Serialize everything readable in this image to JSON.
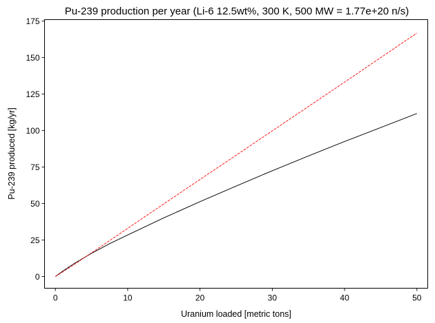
{
  "chart_data": {
    "type": "line",
    "title": "Pu-239 production per year (Li-6 12.5wt%, 300 K, 500 MW = 1.77e+20 n/s)",
    "xlabel": "Uranium loaded [metric tons]",
    "ylabel": "Pu-239 produced [kg/yr]",
    "xlim": [
      -1.5,
      51.5
    ],
    "ylim": [
      -8,
      176
    ],
    "xticks": [
      0,
      10,
      20,
      30,
      40,
      50
    ],
    "yticks": [
      0,
      25,
      50,
      75,
      100,
      125,
      150,
      175
    ],
    "grid": false,
    "x": [
      0,
      1,
      2,
      3,
      5,
      7.5,
      10,
      15,
      20,
      25,
      30,
      35,
      40,
      45,
      50
    ],
    "series": [
      {
        "style": "solid",
        "color": "#000000",
        "values": [
          0,
          3.6,
          7.0,
          10.1,
          15.9,
          22.5,
          28.5,
          40.2,
          51.3,
          62.0,
          72.5,
          82.6,
          92.5,
          102.1,
          111.7
        ]
      },
      {
        "style": "dashed",
        "color": "#ff0000",
        "values": [
          0,
          3.1,
          6.3,
          9.6,
          16.2,
          24.6,
          33.0,
          49.8,
          66.5,
          83.1,
          99.8,
          116.5,
          133.2,
          150.0,
          166.8
        ]
      }
    ]
  }
}
